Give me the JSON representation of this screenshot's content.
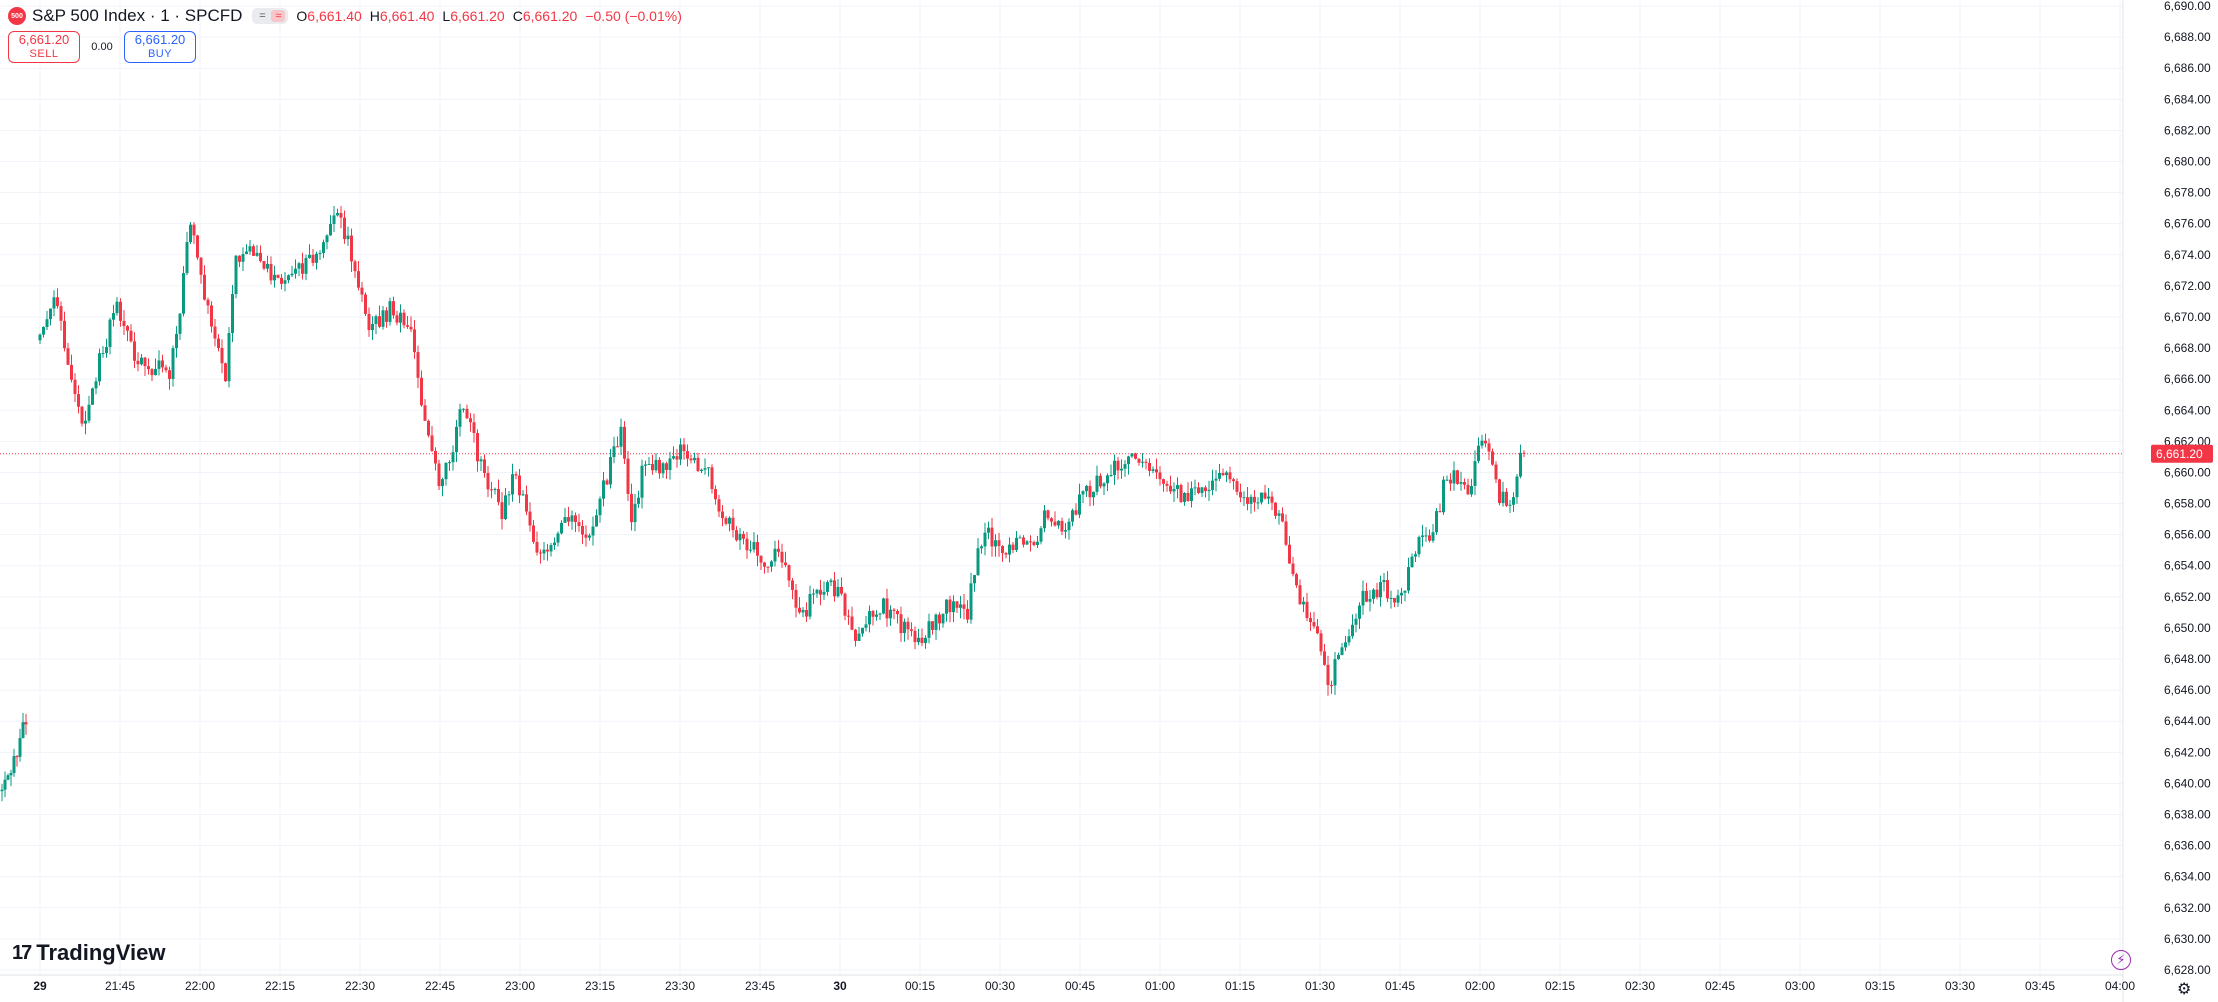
{
  "header": {
    "logo_text": "500",
    "title": "S&P 500 Index · 1 · SPCFD",
    "ohlc": {
      "o_label": "O",
      "o": "6,661.40",
      "h_label": "H",
      "h": "6,661.40",
      "l_label": "L",
      "l": "6,661.20",
      "c_label": "C",
      "c": "6,661.20",
      "change": "−0.50 (−0.01%)"
    },
    "mode_glyph_1": "=",
    "mode_glyph_2": "≈"
  },
  "trade": {
    "sell_price": "6,661.20",
    "sell_label": "SELL",
    "spread": "0.00",
    "buy_price": "6,661.20",
    "buy_label": "BUY"
  },
  "branding": {
    "mark": "17",
    "name": "TradingView"
  },
  "icons": {
    "bolt": "lightning-icon",
    "settings": "gear-icon"
  },
  "colors": {
    "up": "#089981",
    "down": "#f23645",
    "price_line": "#f23645",
    "grid": "#f0f3fa"
  },
  "chart_data": {
    "type": "candlestick",
    "symbol": "S&P 500 Index · 1 · SPCFD",
    "interval": "1 minute",
    "ylim": [
      6628,
      6690
    ],
    "y_tick_step": 2,
    "x_tick_labels": [
      "29",
      "21:45",
      "22:00",
      "22:15",
      "22:30",
      "22:45",
      "23:00",
      "23:15",
      "23:30",
      "23:45",
      "30",
      "00:15",
      "00:30",
      "00:45",
      "01:00",
      "01:15",
      "01:30",
      "01:45",
      "02:00",
      "02:15",
      "02:30",
      "02:45",
      "03:00",
      "03:15",
      "03:30",
      "03:45",
      "04:00"
    ],
    "last_price": 6661.2,
    "last_price_label": "6,661.20",
    "segment_1_close_path": [
      [
        0,
        6639.5
      ],
      [
        6,
        6642.5
      ],
      [
        7,
        6644.2
      ],
      [
        8,
        6643.8
      ]
    ],
    "segment_2_close_path": [
      [
        0,
        6668.5
      ],
      [
        4,
        6671.2
      ],
      [
        8,
        6667.5
      ],
      [
        12,
        6663.0
      ],
      [
        15,
        6665.5
      ],
      [
        22,
        6671.0
      ],
      [
        28,
        6667.0
      ],
      [
        37,
        6666.5
      ],
      [
        40,
        6670.5
      ],
      [
        43,
        6676.5
      ],
      [
        48,
        6670.5
      ],
      [
        53,
        6666.0
      ],
      [
        56,
        6673.5
      ],
      [
        62,
        6674.5
      ],
      [
        66,
        6672.5
      ],
      [
        74,
        6673.0
      ],
      [
        80,
        6674.5
      ],
      [
        85,
        6676.5
      ],
      [
        90,
        6673.5
      ],
      [
        94,
        6669.0
      ],
      [
        100,
        6670.5
      ],
      [
        106,
        6669.5
      ],
      [
        110,
        6663.0
      ],
      [
        114,
        6659.0
      ],
      [
        118,
        6661.5
      ],
      [
        121,
        6664.5
      ],
      [
        126,
        6660.5
      ],
      [
        132,
        6657.5
      ],
      [
        136,
        6660.0
      ],
      [
        140,
        6656.0
      ],
      [
        144,
        6654.5
      ],
      [
        150,
        6657.5
      ],
      [
        156,
        6655.5
      ],
      [
        163,
        6660.5
      ],
      [
        166,
        6662.5
      ],
      [
        169,
        6656.5
      ],
      [
        173,
        6661.0
      ],
      [
        177,
        6660.0
      ],
      [
        183,
        6661.5
      ],
      [
        191,
        6659.8
      ],
      [
        194,
        6657.0
      ],
      [
        200,
        6656.0
      ],
      [
        207,
        6654.5
      ],
      [
        213,
        6654.5
      ],
      [
        217,
        6650.5
      ],
      [
        222,
        6652.5
      ],
      [
        228,
        6652.5
      ],
      [
        233,
        6649.5
      ],
      [
        240,
        6651.5
      ],
      [
        245,
        6650.5
      ],
      [
        250,
        6649.0
      ],
      [
        256,
        6650.5
      ],
      [
        260,
        6651.5
      ],
      [
        265,
        6651.0
      ],
      [
        268,
        6655.0
      ],
      [
        271,
        6656.0
      ],
      [
        275,
        6654.5
      ],
      [
        280,
        6655.5
      ],
      [
        285,
        6656.0
      ],
      [
        288,
        6657.5
      ],
      [
        292,
        6656.5
      ],
      [
        298,
        6658.5
      ],
      [
        303,
        6659.5
      ],
      [
        306,
        6660.0
      ],
      [
        311,
        6661.0
      ],
      [
        316,
        6660.5
      ],
      [
        322,
        6659.5
      ],
      [
        327,
        6658.5
      ],
      [
        332,
        6659.0
      ],
      [
        338,
        6660.0
      ],
      [
        343,
        6658.5
      ],
      [
        350,
        6658.5
      ],
      [
        355,
        6656.5
      ],
      [
        360,
        6651.5
      ],
      [
        365,
        6650.0
      ],
      [
        368,
        6646.0
      ],
      [
        373,
        6649.5
      ],
      [
        378,
        6652.0
      ],
      [
        384,
        6652.5
      ],
      [
        389,
        6652.0
      ],
      [
        394,
        6656.0
      ],
      [
        398,
        6656.0
      ],
      [
        402,
        6660.0
      ],
      [
        406,
        6659.5
      ],
      [
        409,
        6659.0
      ],
      [
        412,
        6662.5
      ],
      [
        417,
        6658.5
      ],
      [
        420,
        6658.0
      ],
      [
        422,
        6659.5
      ],
      [
        423,
        6661.5
      ],
      [
        424,
        6661.2
      ]
    ]
  }
}
